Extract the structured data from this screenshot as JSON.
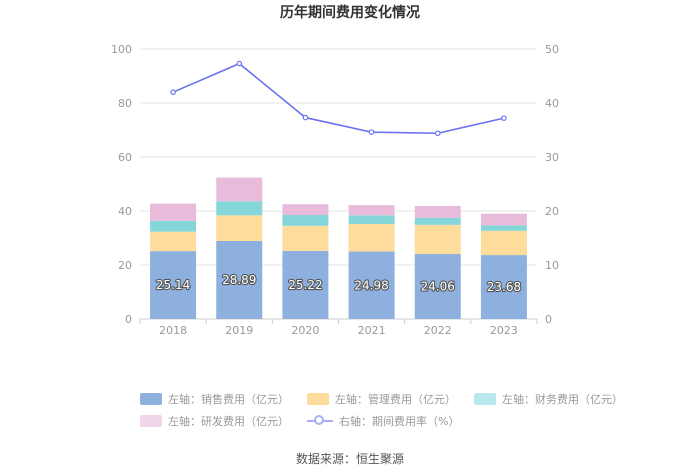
{
  "chart_data": {
    "type": "bar",
    "title": "历年期间费用变化情况",
    "categories": [
      "2018",
      "2019",
      "2020",
      "2021",
      "2022",
      "2023"
    ],
    "left_axis": {
      "min": 0,
      "max": 100,
      "ticks": [
        "0",
        "20",
        "40",
        "60",
        "80",
        "100"
      ]
    },
    "right_axis": {
      "min": 0,
      "max": 50,
      "ticks": [
        "0",
        "10",
        "20",
        "30",
        "40",
        "50"
      ]
    },
    "stacked_series": [
      {
        "name": "左轴：销售费用（亿元）",
        "color": "#8eb0de",
        "values": [
          25.14,
          28.89,
          25.22,
          24.98,
          24.06,
          23.68
        ],
        "labels": [
          "25.14",
          "28.89",
          "25.22",
          "24.98",
          "24.06",
          "23.68"
        ]
      },
      {
        "name": "左轴：管理费用（亿元）",
        "color": "#fddc9c",
        "values": [
          7.2,
          9.5,
          9.3,
          10.2,
          10.8,
          9.0
        ]
      },
      {
        "name": "左轴：财务费用（亿元）",
        "color": "#84d6d8",
        "values": [
          4.0,
          5.2,
          4.0,
          3.2,
          2.6,
          2.0
        ]
      },
      {
        "name": "左轴：研发费用（亿元）",
        "color": "#e8bbdb",
        "values": [
          6.4,
          8.8,
          4.0,
          3.8,
          4.4,
          4.3
        ]
      }
    ],
    "line_series": {
      "name": "右轴：期间费用率（%）",
      "color": "#6b72ee",
      "values": [
        42.0,
        47.3,
        37.3,
        34.6,
        34.4,
        37.2
      ]
    },
    "grid": true
  },
  "legend": {
    "items": [
      {
        "label": "左轴：销售费用（亿元）",
        "color": "#8eb0de"
      },
      {
        "label": "左轴：管理费用（亿元）",
        "color": "#fddc9c"
      },
      {
        "label": "左轴：财务费用（亿元）",
        "color": "#b8e8eb"
      },
      {
        "label": "左轴：研发费用（亿元）",
        "color": "#f1d6ea"
      },
      {
        "label": "右轴：期间费用率（%）",
        "color": "#6b72ee"
      }
    ]
  },
  "source": "数据来源：恒生聚源"
}
